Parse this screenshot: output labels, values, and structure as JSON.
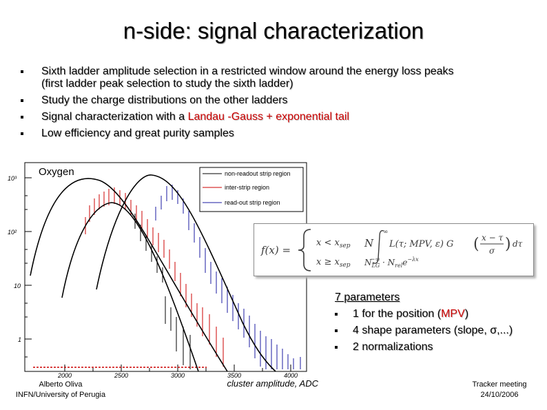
{
  "slide": {
    "title": "n-side: signal characterization",
    "bullets": [
      {
        "text": "Sixth ladder amplitude selection in a restricted window around the energy loss peaks"
      },
      {
        "sub": "(first ladder peak selection to study the sixth ladder)"
      },
      {
        "text": "Study the charge distributions on the other ladders"
      },
      {
        "pre": "Signal characterization with a ",
        "highlight": "Landau -Gauss + exponential tail"
      },
      {
        "text": "Low efficiency and great purity samples"
      }
    ],
    "colors": {
      "accent": "#cc0000",
      "series_black": "#000000",
      "series_red": "#cc0000",
      "series_blue": "#1a1aa0"
    }
  },
  "plot": {
    "label": "Oxygen",
    "xlabel": "cluster amplitude, ADC",
    "x_ticks": [
      "2000",
      "2500",
      "3000",
      "3500",
      "4000"
    ],
    "y_ticks": [
      "10³",
      "10²",
      "10",
      "1"
    ],
    "legend": [
      "non-readout strip region",
      "inter-strip region",
      "read-out strip region"
    ]
  },
  "formula": {
    "lhs": "f(x) =",
    "case1": "x < x",
    "case1_sub": "sep",
    "case2": "x ≥ x",
    "case2_sub": "sep",
    "N": "N",
    "upper": "∞",
    "lower": "−∞",
    "integrand": "L(τ; MPV, ε) G",
    "frac_num": "x − τ",
    "frac_den": "σ",
    "dtau": "dτ",
    "tail_a": "N",
    "tail_a_sub": "LG",
    "tail_b": " · N",
    "tail_b_sub": "rel",
    "tail_c": "e",
    "tail_exp": "−λx"
  },
  "params": {
    "heading": "7 parameters",
    "items": [
      {
        "pre": "1 for the position (",
        "hl": "MPV",
        "post": ")"
      },
      {
        "text": "4 shape parameters (slope, σ,...)"
      },
      {
        "text": "2 normalizations"
      }
    ]
  },
  "footer": {
    "author": "Alberto Oliva",
    "affiliation": "INFN/University of Perugia",
    "meeting": "Tracker meeting",
    "date": "24/10/2006"
  }
}
